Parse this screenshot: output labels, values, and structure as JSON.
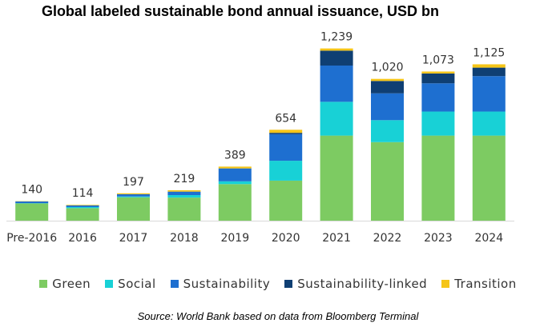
{
  "chart_data": {
    "type": "bar",
    "stacked": true,
    "title": "Global labeled sustainable bond annual issuance, USD bn",
    "categories": [
      "Pre-2016",
      "2016",
      "2017",
      "2018",
      "2019",
      "2020",
      "2021",
      "2022",
      "2023",
      "2024"
    ],
    "totals_labels": [
      "140",
      "114",
      "197",
      "219",
      "389",
      "654",
      "1,239",
      "1,020",
      "1,073",
      "1,125"
    ],
    "totals": [
      140,
      114,
      197,
      219,
      389,
      654,
      1239,
      1020,
      1073,
      1125
    ],
    "series": [
      {
        "name": "Green",
        "color": "#7DCB62",
        "values": [
          124,
          90,
          168,
          166,
          263,
          288,
          612,
          565,
          612,
          612
        ]
      },
      {
        "name": "Social",
        "color": "#18D1D6",
        "values": [
          2,
          8,
          6,
          18,
          20,
          143,
          243,
          158,
          173,
          173
        ]
      },
      {
        "name": "Sustainability",
        "color": "#1E6FD0",
        "values": [
          12,
          12,
          16,
          25,
          93,
          191,
          261,
          193,
          203,
          255
        ]
      },
      {
        "name": "Sustainability-linked",
        "color": "#0F3F73",
        "values": [
          0,
          0,
          0,
          0,
          0,
          10,
          107,
          89,
          71,
          61
        ]
      },
      {
        "name": "Transition",
        "color": "#F5C518",
        "values": [
          2,
          4,
          7,
          10,
          13,
          22,
          16,
          15,
          14,
          24
        ]
      }
    ],
    "ylim": [
      0,
      1300
    ],
    "grid": false,
    "legend_position": "bottom",
    "source": "Source: World Bank based on data from Bloomberg Terminal"
  }
}
